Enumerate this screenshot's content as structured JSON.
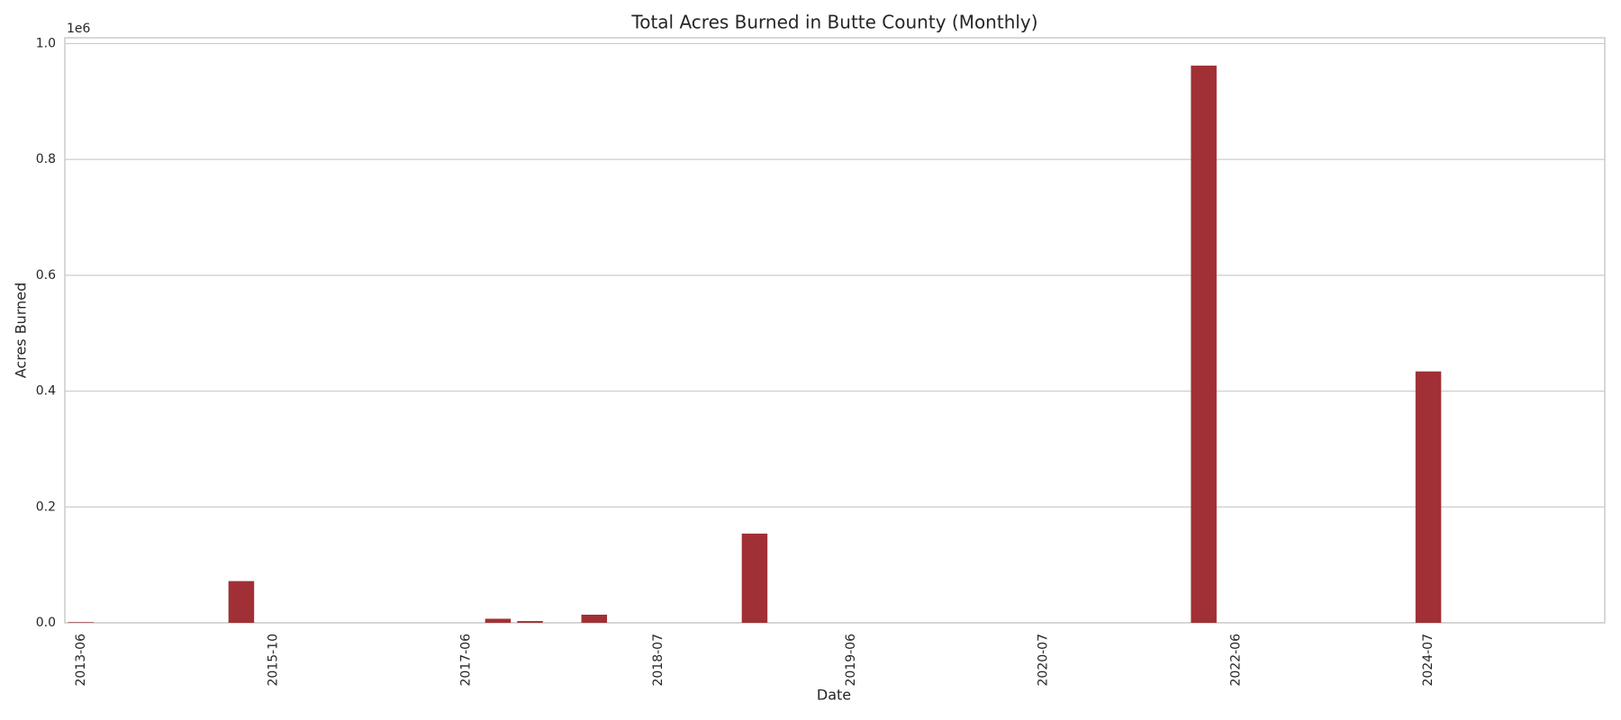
{
  "chart_data": {
    "type": "bar",
    "title": "Total Acres Burned in Butte County (Monthly)",
    "x_label": "Date",
    "y_label": "Acres Burned",
    "y_offset_label": "1e6",
    "categories": [
      "2013-06",
      null,
      null,
      null,
      null,
      null,
      "2015-10",
      null,
      null,
      null,
      null,
      null,
      "2017-06",
      null,
      null,
      null,
      null,
      null,
      "2018-07",
      null,
      null,
      null,
      null,
      null,
      "2019-06",
      null,
      null,
      null,
      null,
      null,
      "2020-07",
      null,
      null,
      null,
      null,
      null,
      "2022-06",
      null,
      null,
      null,
      null,
      null,
      "2024-07",
      null,
      null,
      null,
      null,
      null
    ],
    "values": [
      0.001,
      0,
      0,
      0,
      0,
      0.072,
      0,
      0,
      0,
      0,
      0,
      0,
      0,
      0.007,
      0.003,
      0,
      0.014,
      0,
      0,
      0,
      0,
      0.154,
      0,
      0,
      0,
      0,
      0,
      0,
      0,
      0,
      0,
      0,
      0,
      0,
      0,
      0.962,
      0,
      0,
      0,
      0,
      0,
      0,
      0.434,
      0,
      0,
      0,
      0,
      0
    ],
    "color": "#a03035",
    "ylim": [
      0,
      1.01
    ],
    "yticks": [
      {
        "value": 0,
        "label": "0.0"
      },
      0.2,
      0.4,
      0.6,
      0.8,
      {
        "value": 1,
        "label": "1.0"
      }
    ],
    "grid": true
  }
}
